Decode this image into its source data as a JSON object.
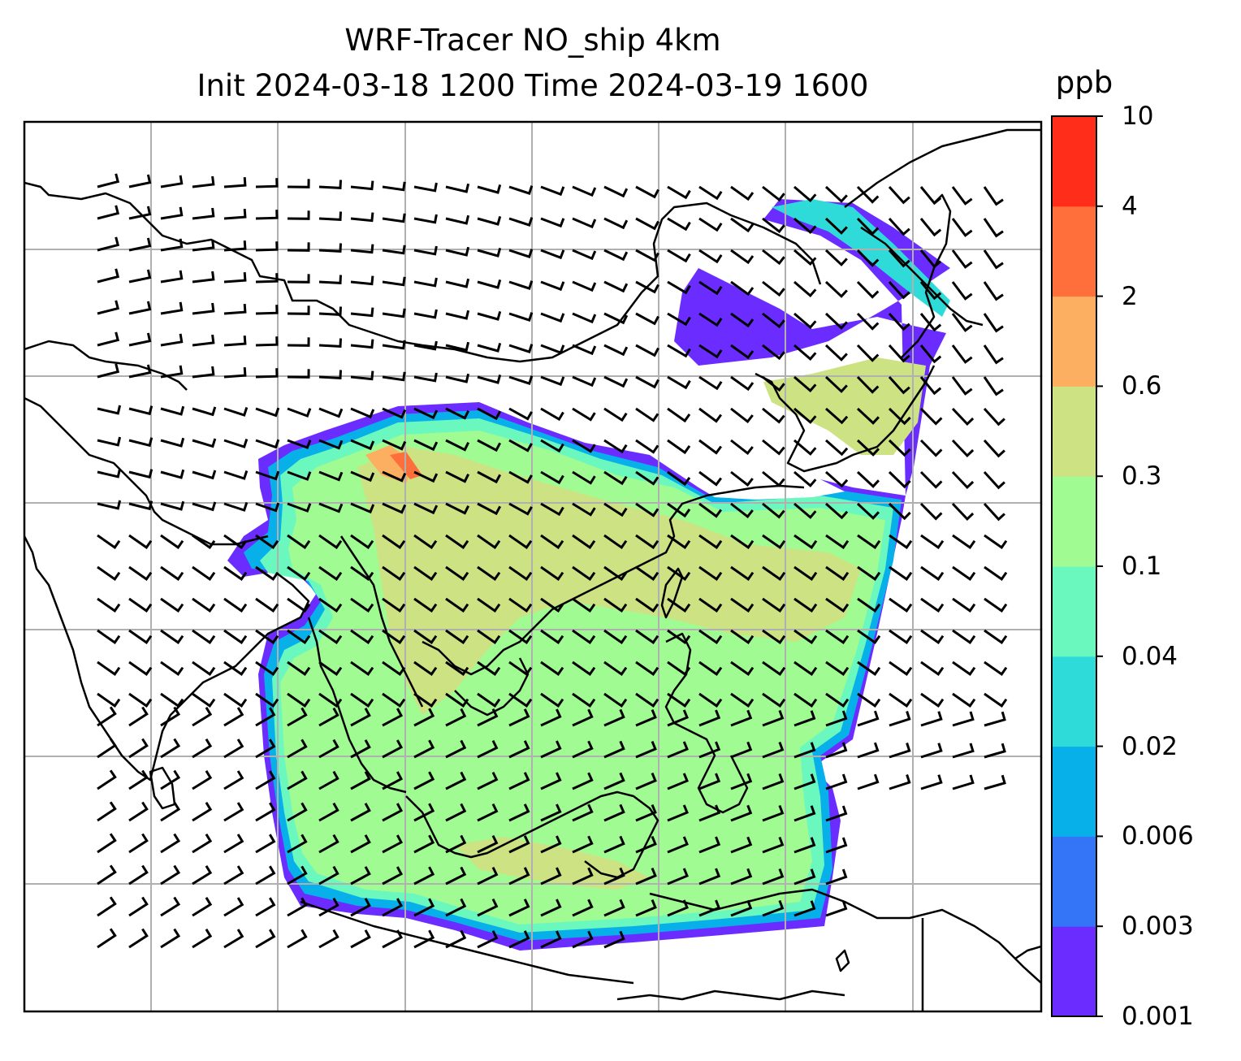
{
  "title": {
    "line1": "WRF-Tracer NO_ship 4km",
    "line2": "Init 2024-03-18 1200 Time 2024-03-19 1600"
  },
  "colorbar": {
    "unit": "ppb",
    "levels": [
      "0.001",
      "0.003",
      "0.006",
      "0.02",
      "0.04",
      "0.1",
      "0.3",
      "0.6",
      "2",
      "4",
      "10"
    ],
    "colors": [
      "#6a2cff",
      "#3375f6",
      "#08b0ea",
      "#2fdbd9",
      "#6bf8bf",
      "#9ffb92",
      "#cde283",
      "#fcae61",
      "#fe6f3c",
      "#ff2d1a"
    ]
  },
  "map": {
    "gridlines": true,
    "coastlines": true,
    "wind_barbs": true
  }
}
